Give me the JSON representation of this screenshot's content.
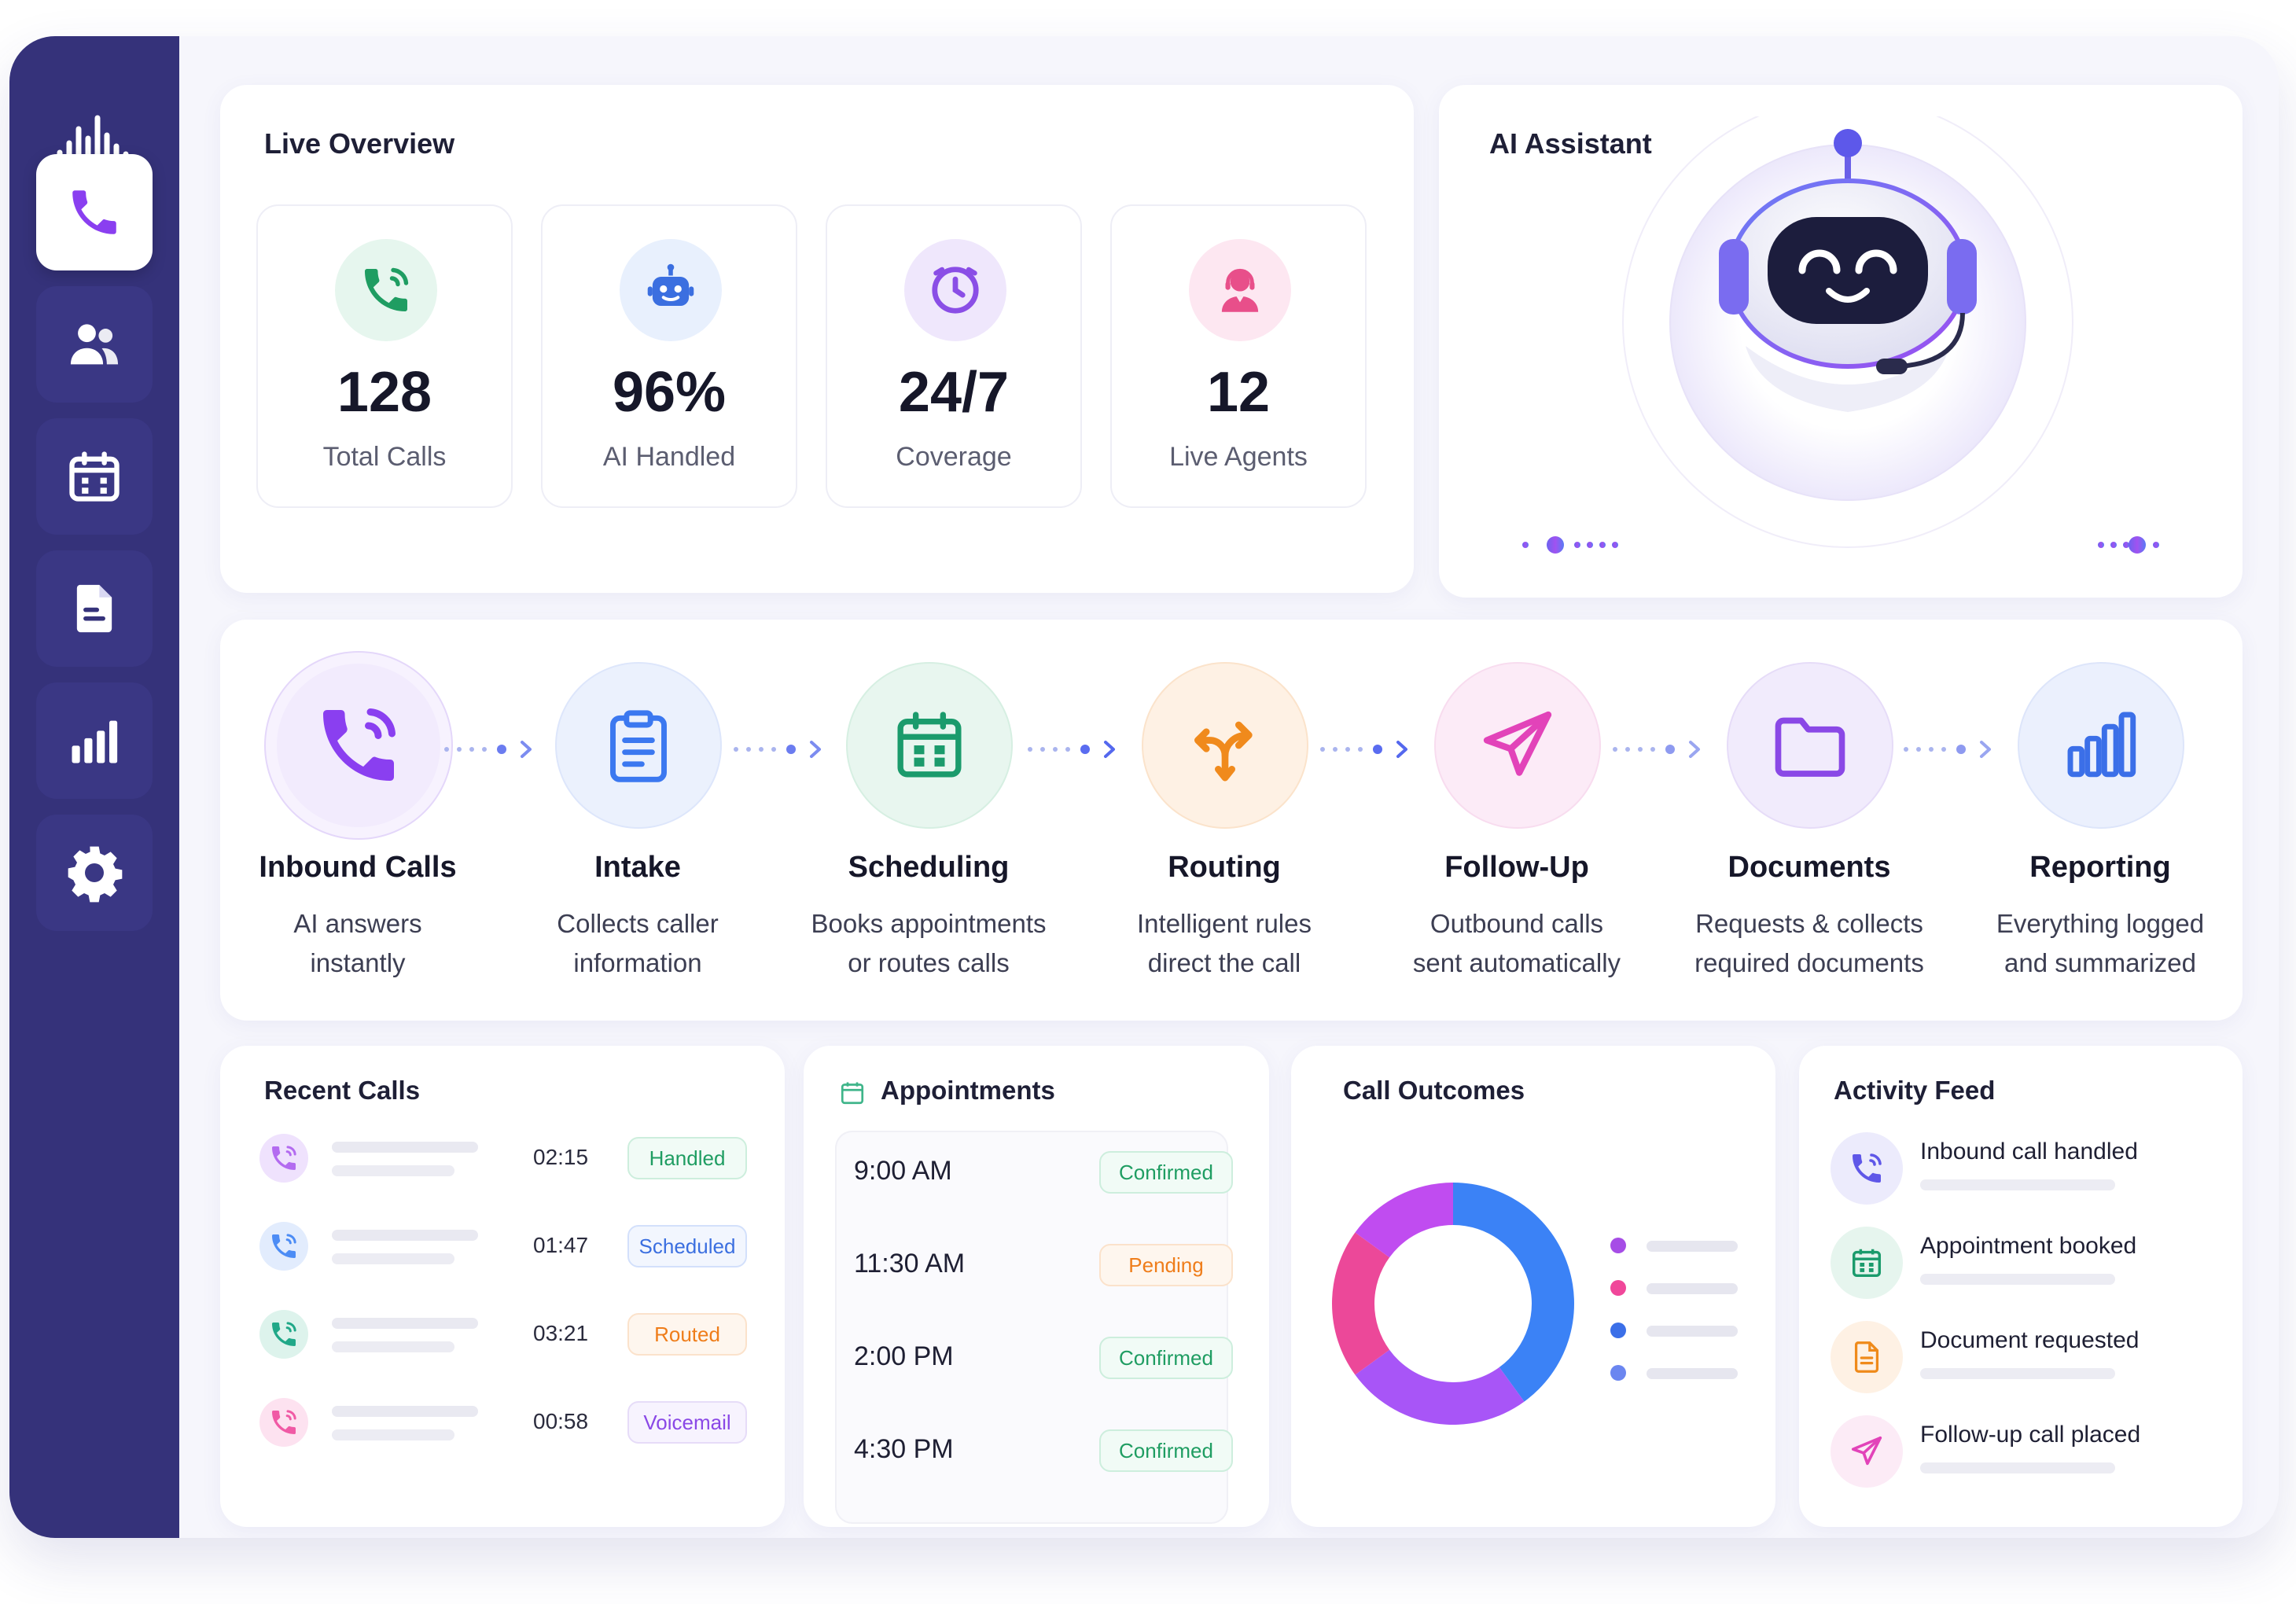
{
  "sidebar": {
    "logo_icon": "soundwave-logo-icon",
    "items": [
      {
        "icon": "phone-icon",
        "active": true
      },
      {
        "icon": "users-icon",
        "active": false
      },
      {
        "icon": "calendar-icon",
        "active": false
      },
      {
        "icon": "document-icon",
        "active": false
      },
      {
        "icon": "bar-chart-icon",
        "active": false
      },
      {
        "icon": "gear-icon",
        "active": false
      }
    ]
  },
  "overview": {
    "title": "Live Overview",
    "stats": [
      {
        "value": "128",
        "label": "Total Calls",
        "icon": "phone-ringing-icon",
        "color": "#1f9d62"
      },
      {
        "value": "96%",
        "label": "AI Handled",
        "icon": "robot-icon",
        "color": "#3b6fe0"
      },
      {
        "value": "24/7",
        "label": "Coverage",
        "icon": "clock-icon",
        "color": "#8a4ee6"
      },
      {
        "value": "12",
        "label": "Live Agents",
        "icon": "agent-headset-icon",
        "color": "#e84f8a"
      }
    ]
  },
  "assistant": {
    "title": "AI Assistant",
    "avatar_icon": "robot-headset-icon",
    "waveform_icon": "voice-waveform-icon"
  },
  "workflow": {
    "steps": [
      {
        "name": "Inbound Calls",
        "desc1": "AI answers",
        "desc2": "instantly",
        "icon": "phone-ringing-icon",
        "color": "#8a3ff0"
      },
      {
        "name": "Intake",
        "desc1": "Collects caller",
        "desc2": "information",
        "icon": "clipboard-icon",
        "color": "#3b78f0"
      },
      {
        "name": "Scheduling",
        "desc1": "Books appointments",
        "desc2": "or routes calls",
        "icon": "calendar-icon",
        "color": "#1b9b6c"
      },
      {
        "name": "Routing",
        "desc1": "Intelligent rules",
        "desc2": "direct the call",
        "icon": "split-arrows-icon",
        "color": "#f08a1c"
      },
      {
        "name": "Follow-Up",
        "desc1": "Outbound calls",
        "desc2": "sent automatically",
        "icon": "paper-plane-icon",
        "color": "#e243b9"
      },
      {
        "name": "Documents",
        "desc1": "Requests & collects",
        "desc2": "required documents",
        "icon": "folder-icon",
        "color": "#8a48e6"
      },
      {
        "name": "Reporting",
        "desc1": "Everything logged",
        "desc2": "and summarized",
        "icon": "bar-chart-icon",
        "color": "#3b6fe8"
      }
    ]
  },
  "recent_calls": {
    "title": "Recent Calls",
    "rows": [
      {
        "duration": "02:15",
        "status": "Handled",
        "avatar_color": "#b36bf0",
        "badge_color": "#1f9d62"
      },
      {
        "duration": "01:47",
        "status": "Scheduled",
        "avatar_color": "#4c8cf5",
        "badge_color": "#3b6fe0"
      },
      {
        "duration": "03:21",
        "status": "Routed",
        "avatar_color": "#20a888",
        "badge_color": "#ef7d1a"
      },
      {
        "duration": "00:58",
        "status": "Voicemail",
        "avatar_color": "#f05aa5",
        "badge_color": "#8a48e6"
      }
    ]
  },
  "appointments": {
    "title": "Appointments",
    "icon": "calendar-icon",
    "rows": [
      {
        "time": "9:00 AM",
        "status": "Confirmed",
        "color": "#1f9d62"
      },
      {
        "time": "11:30 AM",
        "status": "Pending",
        "color": "#ef7d1a"
      },
      {
        "time": "2:00 PM",
        "status": "Confirmed",
        "color": "#1f9d62"
      },
      {
        "time": "4:30 PM",
        "status": "Confirmed",
        "color": "#1f9d62"
      }
    ]
  },
  "call_outcomes": {
    "title": "Call Outcomes",
    "legend_colors": [
      "#a64de6",
      "#f0479a",
      "#3b6fe8",
      "#6b86f0"
    ]
  },
  "chart_data": {
    "type": "pie",
    "title": "Call Outcomes",
    "values": [
      40,
      25,
      20,
      15
    ],
    "colors": [
      "#3b82f6",
      "#a855f7",
      "#ec4899",
      "#c04cf0"
    ]
  },
  "activity": {
    "title": "Activity Feed",
    "items": [
      {
        "text": "Inbound call handled",
        "icon": "phone-icon",
        "color": "#5f57e8"
      },
      {
        "text": "Appointment booked",
        "icon": "calendar-icon",
        "color": "#1b9b6c"
      },
      {
        "text": "Document requested",
        "icon": "document-icon",
        "color": "#ef8a1a"
      },
      {
        "text": "Follow-up call placed",
        "icon": "paper-plane-icon",
        "color": "#e243b9"
      }
    ]
  }
}
